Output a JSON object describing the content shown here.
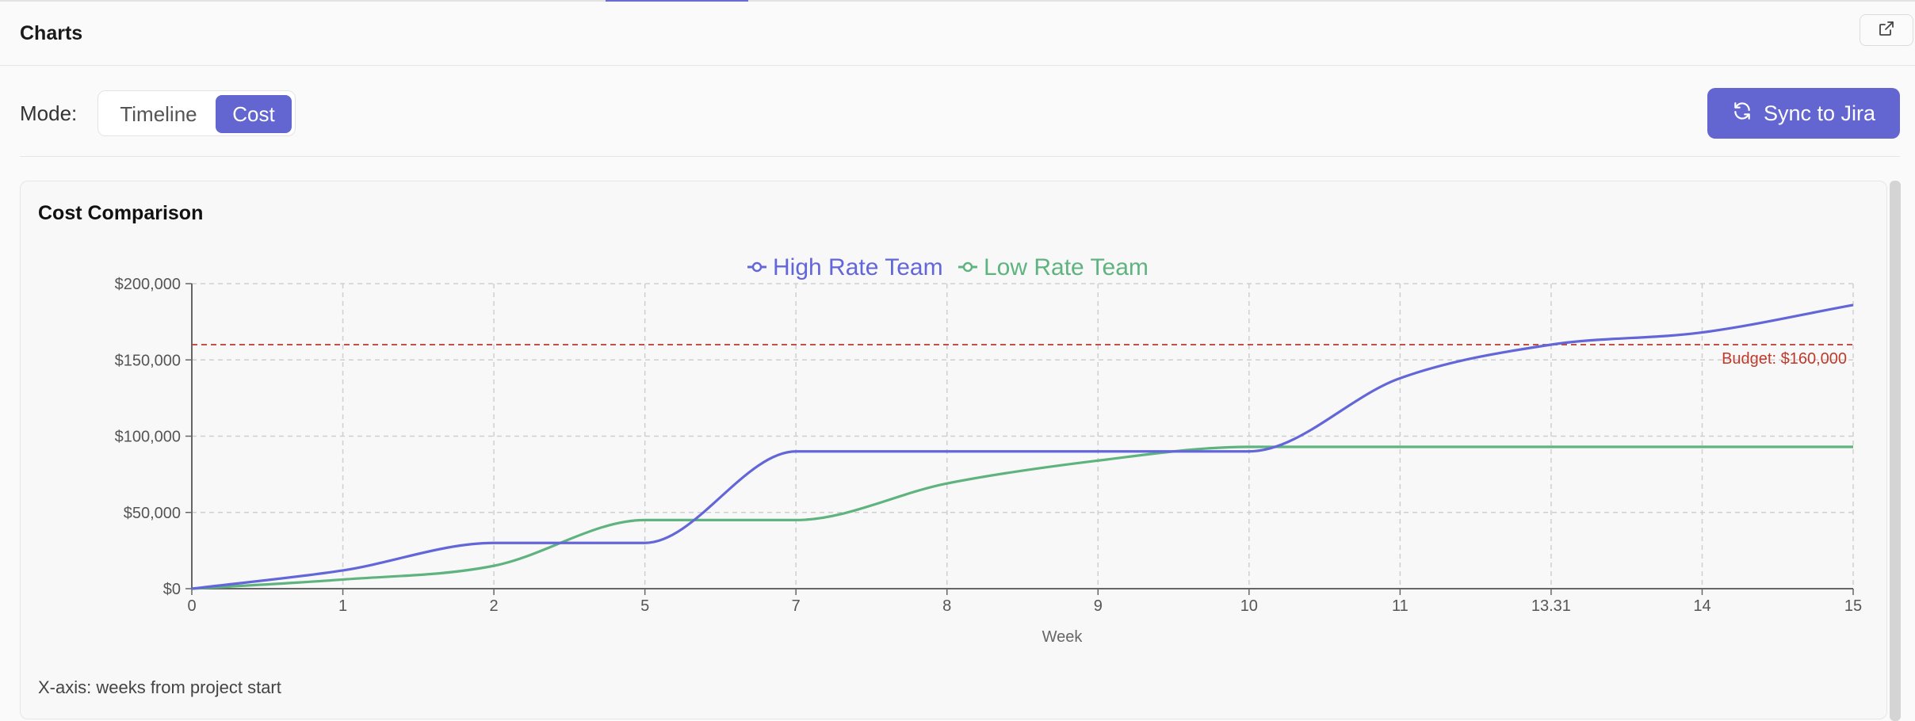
{
  "header": {
    "title": "Charts",
    "open_icon": "external-link-icon"
  },
  "controls": {
    "mode_label": "Mode:",
    "options": [
      "Timeline",
      "Cost"
    ],
    "selected": "Cost",
    "sync_label": "Sync to Jira",
    "sync_icon": "refresh-icon"
  },
  "card": {
    "title": "Cost Comparison",
    "footnote": "X-axis: weeks from project start"
  },
  "colors": {
    "accent": "#6366d1",
    "high": "#6366d9",
    "low": "#5fb37e",
    "budget": "#c0392b"
  },
  "chart_data": {
    "type": "line",
    "xlabel": "Week",
    "ylabel": "",
    "x_ticks": [
      "0",
      "1",
      "2",
      "5",
      "7",
      "8",
      "9",
      "10",
      "11",
      "13.31",
      "14",
      "15"
    ],
    "y_ticks": [
      "$0",
      "$50,000",
      "$100,000",
      "$150,000",
      "$200,000"
    ],
    "ylim": [
      0,
      200000
    ],
    "grid": true,
    "legend": "top-center",
    "series": [
      {
        "name": "High Rate Team",
        "values": [
          0,
          12000,
          30000,
          30000,
          90000,
          90000,
          90000,
          90000,
          138000,
          160000,
          168000,
          186000
        ]
      },
      {
        "name": "Low Rate Team",
        "values": [
          0,
          6000,
          15000,
          45000,
          45000,
          69000,
          84000,
          93000,
          93000,
          93000,
          93000,
          93000
        ]
      }
    ],
    "reference_line": {
      "value": 160000,
      "label": "Budget: $160,000"
    }
  }
}
